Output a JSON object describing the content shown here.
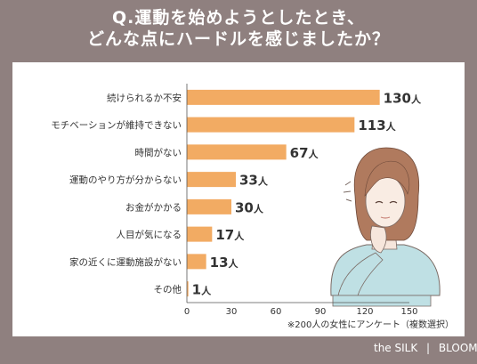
{
  "title": {
    "line1": "Q.運動を始めようとしたとき、",
    "line2": "どんな点にハードルを感じましたか？"
  },
  "note": "※200人の女性にアンケート（複数選択）",
  "brand": {
    "left": "the SILK",
    "separator": "|",
    "right": "BLOOM"
  },
  "colors": {
    "background": "#8f807f",
    "bar": "#f2ab63",
    "card": "#ffffff",
    "text": "#333333"
  },
  "chart_data": {
    "type": "bar",
    "orientation": "horizontal",
    "categories": [
      "続けられるか不安",
      "モチベーションが維持できない",
      "時間がない",
      "運動のやり方が分からない",
      "お金がかかる",
      "人目が気になる",
      "家の近くに運動施設がない",
      "その他"
    ],
    "values": [
      130,
      113,
      67,
      33,
      30,
      17,
      13,
      1
    ],
    "value_unit": "人",
    "xlim": [
      0,
      150
    ],
    "xticks": [
      "0",
      "30",
      "60",
      "90",
      "120",
      "150"
    ],
    "xlabel": "",
    "ylabel": "",
    "grid": false
  }
}
